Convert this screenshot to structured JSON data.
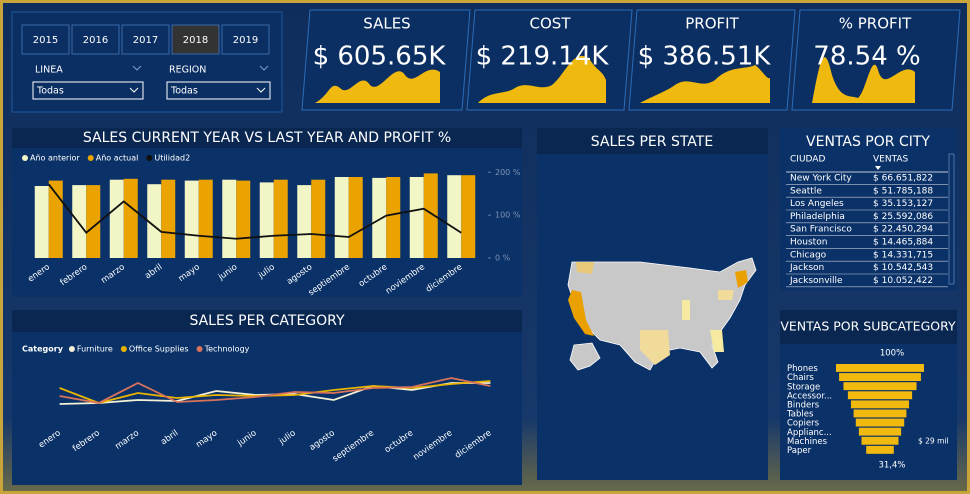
{
  "slicers": {
    "years": [
      "2015",
      "2016",
      "2017",
      "2018",
      "2019"
    ],
    "selected": "2018",
    "filters": [
      {
        "label": "LINEA",
        "value": "Todas"
      },
      {
        "label": "REGION",
        "value": "Todas"
      }
    ]
  },
  "kpis": [
    {
      "title": "SALES",
      "value": "$ 605.65K"
    },
    {
      "title": "COST",
      "value": "$ 219.14K"
    },
    {
      "title": "PROFIT",
      "value": "$ 386.51K"
    },
    {
      "title": "% PROFIT",
      "value": "78.54 %"
    }
  ],
  "map": {
    "title": "SALES PER STATE"
  },
  "table": {
    "title": "VENTAS POR CITY",
    "columns": [
      "CIUDAD",
      "VENTAS"
    ],
    "rows": [
      [
        "New York City",
        "$ 66.651,822"
      ],
      [
        "Seattle",
        "$ 51.785,188"
      ],
      [
        "Los Angeles",
        "$ 35.153,127"
      ],
      [
        "Philadelphia",
        "$ 25.592,086"
      ],
      [
        "San Francisco",
        "$ 22.450,294"
      ],
      [
        "Houston",
        "$ 14.465,884"
      ],
      [
        "Chicago",
        "$ 14.331,715"
      ],
      [
        "Jackson",
        "$ 10.542,543"
      ],
      [
        "Jacksonville",
        "$ 10.052,422"
      ]
    ]
  },
  "chart_data": [
    {
      "type": "bar",
      "title": "SALES CURRENT YEAR VS LAST YEAR AND PROFIT %",
      "categories": [
        "enero",
        "febrero",
        "marzo",
        "abril",
        "mayo",
        "junio",
        "julio",
        "agosto",
        "septiembre",
        "octubre",
        "noviembre",
        "diciembre"
      ],
      "series": [
        {
          "name": "Año anterior",
          "color": "#f2f5c6",
          "values": [
            80,
            81,
            87,
            82,
            86,
            87,
            84,
            81,
            90,
            89,
            90,
            92
          ]
        },
        {
          "name": "Año actual",
          "color": "#eaa300",
          "values": [
            86,
            81,
            88,
            87,
            87,
            86,
            87,
            87,
            90,
            90,
            94,
            92
          ]
        },
        {
          "name": "Utilidad2",
          "color": "#101010",
          "type": "line",
          "axis": "y2",
          "values": [
            172,
            59,
            132,
            61,
            52,
            45,
            52,
            56,
            49,
            99,
            115,
            59
          ]
        }
      ],
      "ylim": [
        0,
        100
      ],
      "y2lim": [
        0,
        210
      ],
      "y2ticks": [
        {
          "value": 0,
          "label": "0 %"
        },
        {
          "value": 100,
          "label": "100 %"
        },
        {
          "value": 200,
          "label": "200 %"
        }
      ],
      "legend": "top-left",
      "grid": false
    },
    {
      "type": "line",
      "title": "SALES PER CATEGORY",
      "legend_title": "Category",
      "categories": [
        "enero",
        "febrero",
        "marzo",
        "abril",
        "mayo",
        "junio",
        "julio",
        "agosto",
        "septiembre",
        "octubre",
        "noviembre",
        "diciembre"
      ],
      "series": [
        {
          "name": "Furniture",
          "color": "#f4f1d6",
          "values": [
            16,
            17,
            20,
            19,
            29,
            25,
            26,
            20,
            34,
            30,
            37,
            37
          ]
        },
        {
          "name": "Office Supplies",
          "color": "#e9b400",
          "values": [
            32,
            17,
            27,
            22,
            25,
            24,
            25,
            30,
            34,
            32,
            36,
            39
          ]
        },
        {
          "name": "Technology",
          "color": "#d9735a",
          "values": [
            24,
            17,
            37,
            18,
            20,
            23,
            28,
            27,
            32,
            33,
            42,
            34
          ]
        }
      ],
      "ylim": [
        0,
        55
      ],
      "legend": "top-left",
      "grid": false
    },
    {
      "type": "funnel",
      "title": "VENTAS POR SUBCATEGORY",
      "categories": [
        "Phones",
        "Chairs",
        "Storage",
        "Accessor...",
        "Binders",
        "Tables",
        "Copiers",
        "Applianc...",
        "Machines",
        "Paper"
      ],
      "values": [
        100,
        93,
        83,
        73,
        66,
        60,
        55,
        48,
        42,
        31.4
      ],
      "value_labels": [
        "100%",
        null,
        null,
        null,
        null,
        null,
        null,
        null,
        null,
        "31,4%"
      ],
      "annotation": "$ 29 mil",
      "color": "#f2b90f"
    }
  ]
}
